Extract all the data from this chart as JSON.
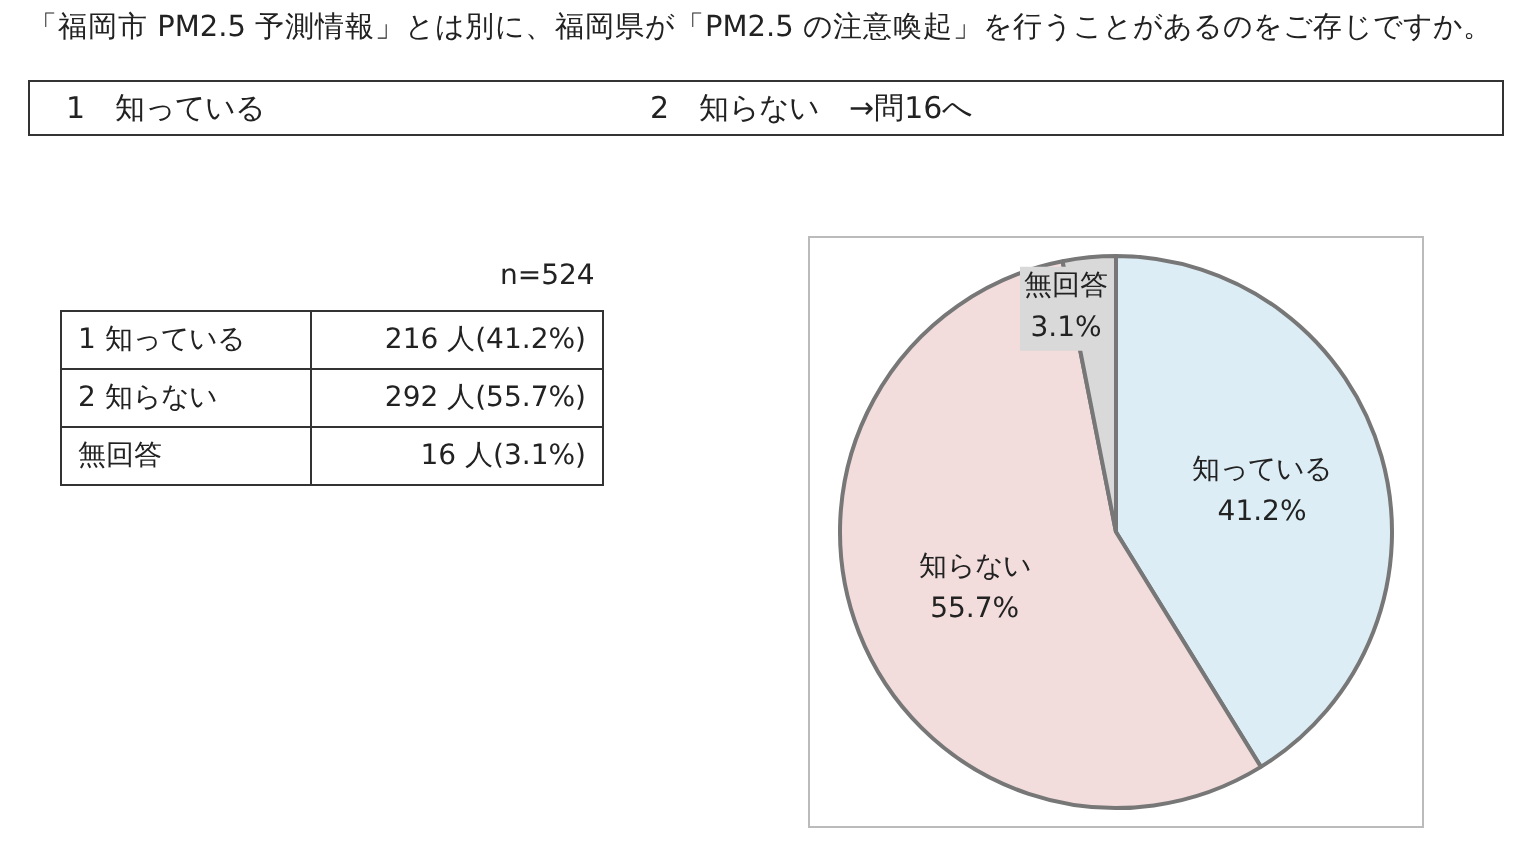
{
  "chart_data": {
    "type": "pie",
    "title": "「福岡市 PM2.5 予測情報」とは別に、福岡県が「PM2.5 の注意喚起」を行うことがあるのをご存じですか。",
    "categories": [
      "知っている",
      "知らない",
      "無回答"
    ],
    "values": [
      41.2,
      55.7,
      3.1
    ],
    "colors": [
      "#dcedf5",
      "#f2dcdc",
      "#d9d9d9"
    ],
    "value_labels": [
      "41.2%",
      "55.7%",
      "3.1%"
    ],
    "legend": false,
    "annotations": [
      "1　知っている",
      "2　知らない　→問16へ",
      "n=524",
      "1 知っている",
      "216 人(41.2%)",
      "2 知らない",
      "292 人(55.7%)",
      "無回答",
      "16 人(3.1%)"
    ]
  }
}
